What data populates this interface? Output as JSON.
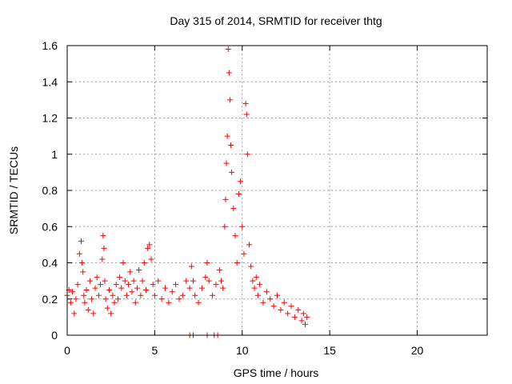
{
  "chart_data": {
    "type": "scatter",
    "title": "Day 315 of 2014, SRMTID for receiver thtg",
    "xlabel": "GPS time / hours",
    "ylabel": "SRMTID / TECUs",
    "xlim": [
      0,
      24
    ],
    "ylim": [
      0,
      1.6
    ],
    "xticks": [
      0,
      5,
      10,
      15,
      20
    ],
    "yticks": [
      0,
      0.2,
      0.4,
      0.6,
      0.8,
      1,
      1.2,
      1.4,
      1.6
    ],
    "xtick_labels": [
      "0",
      "5",
      "10",
      "15",
      "20"
    ],
    "ytick_labels": [
      "0",
      "0.2",
      "0.4",
      "0.6",
      "0.8",
      "1",
      "1.2",
      "1.4",
      "1.6"
    ],
    "grid": true,
    "marker": "+",
    "color": "#ff0000",
    "series": [
      {
        "name": "SRMTID",
        "x": [
          0.0,
          0.1,
          0.2,
          0.3,
          0.4,
          0.5,
          0.6,
          0.7,
          0.8,
          0.85,
          0.9,
          0.95,
          1.0,
          1.1,
          1.2,
          1.3,
          1.4,
          1.5,
          1.6,
          1.7,
          1.8,
          1.9,
          2.0,
          2.05,
          2.1,
          2.15,
          2.2,
          2.3,
          2.4,
          2.5,
          2.6,
          2.7,
          2.8,
          2.9,
          3.0,
          3.1,
          3.2,
          3.3,
          3.4,
          3.5,
          3.6,
          3.7,
          3.8,
          3.9,
          4.0,
          4.1,
          4.2,
          4.3,
          4.4,
          4.5,
          4.6,
          4.7,
          4.8,
          4.9,
          5.0,
          5.2,
          5.4,
          5.6,
          5.8,
          6.0,
          6.2,
          6.4,
          6.6,
          6.8,
          7.0,
          7.1,
          7.2,
          7.3,
          7.5,
          7.7,
          7.9,
          8.0,
          8.1,
          8.3,
          8.5,
          8.7,
          8.8,
          8.9,
          9.0,
          9.05,
          9.1,
          9.15,
          9.2,
          9.25,
          9.3,
          9.35,
          9.4,
          9.5,
          9.6,
          9.7,
          9.8,
          9.9,
          10.0,
          10.1,
          10.2,
          10.25,
          10.3,
          10.4,
          10.5,
          10.6,
          10.7,
          10.8,
          10.9,
          11.0,
          11.2,
          11.4,
          11.6,
          11.8,
          12.0,
          12.2,
          12.4,
          12.6,
          12.8,
          13.0,
          13.2,
          13.4,
          13.5,
          13.6,
          13.7,
          7.0,
          7.2,
          8.0,
          8.4,
          8.6
        ],
        "y": [
          0.22,
          0.25,
          0.18,
          0.24,
          0.12,
          0.2,
          0.28,
          0.45,
          0.52,
          0.4,
          0.35,
          0.22,
          0.18,
          0.25,
          0.14,
          0.3,
          0.2,
          0.12,
          0.26,
          0.32,
          0.22,
          0.28,
          0.42,
          0.55,
          0.48,
          0.3,
          0.2,
          0.15,
          0.25,
          0.12,
          0.22,
          0.18,
          0.28,
          0.2,
          0.32,
          0.26,
          0.4,
          0.3,
          0.22,
          0.28,
          0.35,
          0.24,
          0.3,
          0.18,
          0.26,
          0.36,
          0.22,
          0.3,
          0.4,
          0.25,
          0.48,
          0.5,
          0.42,
          0.28,
          0.22,
          0.3,
          0.2,
          0.26,
          0.18,
          0.24,
          0.28,
          0.2,
          0.22,
          0.3,
          0.26,
          0.38,
          0.3,
          0.22,
          0.18,
          0.26,
          0.32,
          0.4,
          0.3,
          0.22,
          0.28,
          0.36,
          0.3,
          0.26,
          0.6,
          0.75,
          0.95,
          1.1,
          1.58,
          1.45,
          1.3,
          1.05,
          0.9,
          0.7,
          0.55,
          0.4,
          0.78,
          0.85,
          0.6,
          0.45,
          1.28,
          1.22,
          1.0,
          0.5,
          0.38,
          0.3,
          0.26,
          0.32,
          0.22,
          0.28,
          0.18,
          0.24,
          0.2,
          0.16,
          0.22,
          0.14,
          0.18,
          0.12,
          0.16,
          0.1,
          0.14,
          0.08,
          0.12,
          0.06,
          0.1,
          0.0,
          0.0,
          0.0,
          0.0,
          0.0
        ]
      }
    ]
  }
}
